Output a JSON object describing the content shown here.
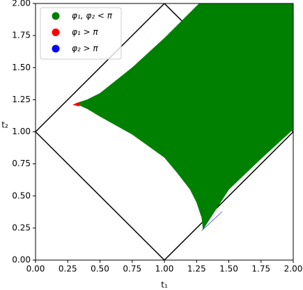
{
  "chart_data": {
    "type": "region",
    "x_label": "t₁",
    "y_label": "t₂",
    "xlim": [
      0,
      2
    ],
    "ylim": [
      0,
      2
    ],
    "xticks": [
      {
        "value": 0,
        "label": "0.00"
      },
      {
        "value": 0.25,
        "label": "0.25"
      },
      {
        "value": 0.5,
        "label": "0.50"
      },
      {
        "value": 0.75,
        "label": "0.75"
      },
      {
        "value": 1,
        "label": "1.00"
      },
      {
        "value": 1.25,
        "label": "1.25"
      },
      {
        "value": 1.5,
        "label": "1.50"
      },
      {
        "value": 1.75,
        "label": "1.75"
      },
      {
        "value": 2,
        "label": "2.00"
      }
    ],
    "yticks": [
      {
        "value": 0,
        "label": "0.00"
      },
      {
        "value": 0.25,
        "label": "0.25"
      },
      {
        "value": 0.5,
        "label": "0.50"
      },
      {
        "value": 0.75,
        "label": "0.75"
      },
      {
        "value": 1,
        "label": "1.00"
      },
      {
        "value": 1.25,
        "label": "1.25"
      },
      {
        "value": 1.5,
        "label": "1.50"
      },
      {
        "value": 1.75,
        "label": "1.75"
      },
      {
        "value": 2,
        "label": "2.00"
      }
    ],
    "boundary": {
      "color": "#000000",
      "x": [
        1,
        0,
        1,
        2,
        1
      ],
      "values": [
        2,
        1,
        0,
        1,
        2
      ]
    },
    "legend": "upper left",
    "series": [
      {
        "name": "φ₁, φ₂ < π",
        "color": "#008000",
        "x": [
          0.31,
          0.4,
          0.5,
          0.75,
          1.0,
          1.27,
          2.0,
          2.0,
          1.75,
          1.5,
          1.3,
          1.29,
          1.25,
          1.2,
          1.1,
          1.0,
          0.75,
          0.5,
          0.4
        ],
        "values": [
          1.22,
          1.25,
          1.3,
          1.5,
          1.73,
          2.0,
          2.0,
          1.02,
          0.79,
          0.55,
          0.24,
          0.33,
          0.45,
          0.55,
          0.68,
          0.8,
          0.98,
          1.12,
          1.18
        ]
      },
      {
        "name": "φ₁ > π",
        "color": "#ff0000",
        "x": [
          0.29,
          0.34,
          0.34
        ],
        "values": [
          1.21,
          1.23,
          1.2
        ]
      },
      {
        "name": "φ₂ > π",
        "color": "#0000ff",
        "x": [
          1.29,
          1.31,
          1.45,
          1.43
        ],
        "values": [
          0.23,
          0.25,
          0.38,
          0.36
        ]
      }
    ]
  }
}
